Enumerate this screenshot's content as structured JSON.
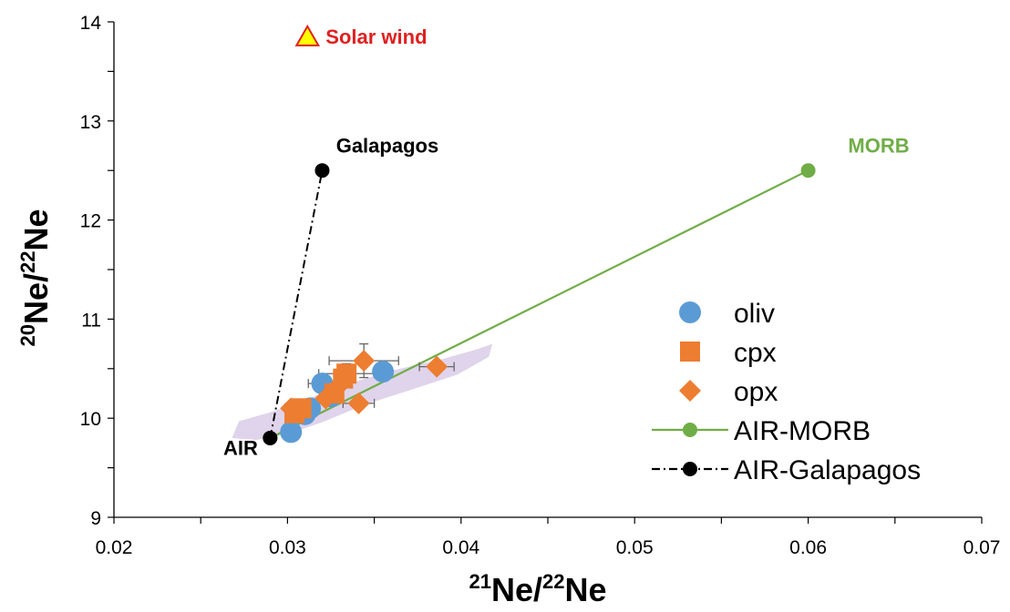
{
  "chart_data": {
    "type": "scatter",
    "title": "",
    "xlabel": {
      "sup1": "21",
      "base1": "Ne/",
      "sup2": "22",
      "base2": "Ne"
    },
    "ylabel": {
      "sup1": "20",
      "base1": "Ne/",
      "sup2": "22",
      "base2": "Ne"
    },
    "xlim": [
      0.02,
      0.07
    ],
    "ylim": [
      9,
      14
    ],
    "x_ticks": [
      0.02,
      0.03,
      0.04,
      0.05,
      0.06,
      0.07
    ],
    "x_tick_labels": [
      "0.02",
      "0.03",
      "0.04",
      "0.05",
      "0.06",
      "0.07"
    ],
    "y_ticks": [
      9,
      10,
      11,
      12,
      13,
      14
    ],
    "y_tick_labels": [
      "9",
      "10",
      "11",
      "12",
      "13",
      "14"
    ],
    "grid": false,
    "legend_position": "right",
    "shaded_region": {
      "color": "#d9cce8",
      "polygon": [
        [
          0.0268,
          9.8
        ],
        [
          0.0272,
          9.97
        ],
        [
          0.029,
          10.06
        ],
        [
          0.0305,
          10.15
        ],
        [
          0.033,
          10.32
        ],
        [
          0.036,
          10.48
        ],
        [
          0.039,
          10.6
        ],
        [
          0.041,
          10.7
        ],
        [
          0.0418,
          10.75
        ],
        [
          0.0416,
          10.62
        ],
        [
          0.0398,
          10.44
        ],
        [
          0.037,
          10.28
        ],
        [
          0.0345,
          10.14
        ],
        [
          0.032,
          9.96
        ],
        [
          0.03,
          9.84
        ],
        [
          0.0282,
          9.78
        ]
      ]
    },
    "series": [
      {
        "name": "oliv",
        "marker": "circle",
        "color": "#5b9bd5",
        "points": [
          {
            "x": 0.0302,
            "y": 9.86
          },
          {
            "x": 0.031,
            "y": 10.04
          },
          {
            "x": 0.0313,
            "y": 10.1
          },
          {
            "x": 0.032,
            "y": 10.35
          },
          {
            "x": 0.0325,
            "y": 10.22
          },
          {
            "x": 0.0355,
            "y": 10.47
          }
        ]
      },
      {
        "name": "cpx",
        "marker": "square",
        "color": "#ed7d31",
        "points": [
          {
            "x": 0.0304,
            "y": 10.05
          },
          {
            "x": 0.0308,
            "y": 10.1
          },
          {
            "x": 0.0327,
            "y": 10.25
          },
          {
            "x": 0.0332,
            "y": 10.4
          },
          {
            "x": 0.0334,
            "y": 10.45
          }
        ]
      },
      {
        "name": "opx",
        "marker": "diamond",
        "color": "#ed7d31",
        "points": [
          {
            "x": 0.0302,
            "y": 10.1
          },
          {
            "x": 0.0322,
            "y": 10.2
          },
          {
            "x": 0.0328,
            "y": 10.3
          },
          {
            "x": 0.0341,
            "y": 10.15
          },
          {
            "x": 0.0344,
            "y": 10.58
          },
          {
            "x": 0.0386,
            "y": 10.52
          }
        ]
      },
      {
        "name": "AIR-MORB",
        "line": "solid",
        "marker": "circle",
        "color": "#70ad47",
        "points": [
          {
            "x": 0.029,
            "y": 9.8
          },
          {
            "x": 0.06,
            "y": 12.5
          }
        ]
      },
      {
        "name": "AIR-Galapagos",
        "line": "dashdot",
        "marker": "circle",
        "color": "#000000",
        "points": [
          {
            "x": 0.029,
            "y": 9.8
          },
          {
            "x": 0.032,
            "y": 12.5
          }
        ]
      }
    ],
    "error_bars": [
      {
        "x": 0.0334,
        "y": 10.45,
        "xerr": 0.0016,
        "yerr": 0.1
      },
      {
        "x": 0.0344,
        "y": 10.58,
        "xerr": 0.002,
        "yerr": 0.17
      },
      {
        "x": 0.0386,
        "y": 10.52,
        "xerr": 0.001,
        "yerr": 0.05
      },
      {
        "x": 0.0341,
        "y": 10.15,
        "xerr": 0.0009,
        "yerr": 0.05
      },
      {
        "x": 0.032,
        "y": 10.35,
        "xerr": 0.0008,
        "yerr": 0.06
      }
    ],
    "annotations": [
      {
        "text": "Solar wind",
        "x": 0.0322,
        "y": 13.78,
        "color": "#e02020",
        "marker": "triangle",
        "marker_color": "#ffff00",
        "marker_edge": "#e02020"
      },
      {
        "text": "Galapagos",
        "x": 0.0328,
        "y": 12.68,
        "color": "#000000"
      },
      {
        "text": "MORB",
        "x": 0.0623,
        "y": 12.68,
        "color": "#70ad47"
      },
      {
        "text": "AIR",
        "x": 0.0263,
        "y": 9.63,
        "color": "#000000"
      }
    ]
  }
}
